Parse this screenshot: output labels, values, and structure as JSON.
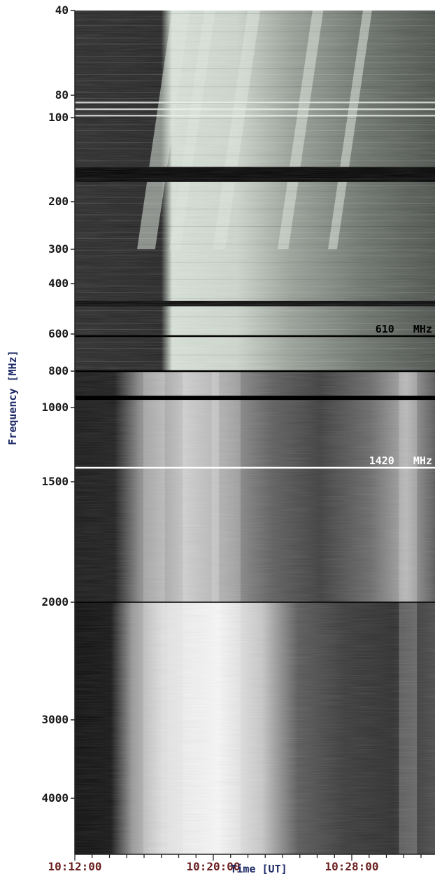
{
  "chart_data": {
    "type": "heatmap",
    "title": "",
    "xlabel": "Time [UT]",
    "ylabel": "Frequency [MHz]",
    "y_scale": "log",
    "ylim": [
      40,
      4400
    ],
    "xlim": [
      "10:12:00",
      "10:36:00"
    ],
    "y_ticks": [
      40,
      80,
      100,
      200,
      300,
      400,
      600,
      800,
      1000,
      1500,
      2000,
      3000,
      4000
    ],
    "x_ticks": [
      "10:12:00",
      "10:20:00",
      "10:28:00"
    ],
    "reference_lines": [
      {
        "frequency": 610,
        "label": "610   MHz",
        "color": "#000000"
      },
      {
        "frequency": 1420,
        "label": "1420   MHz",
        "color": "#ffffff"
      }
    ],
    "band_edges": [
      800,
      2000
    ],
    "colormap": "grayscale",
    "colors": {
      "low_band_background": "#2a2a2a",
      "burst_emission": "#dfe8df",
      "high_band_background": "#1b1b1b",
      "high_band_emission": "#f2f2f2"
    }
  }
}
